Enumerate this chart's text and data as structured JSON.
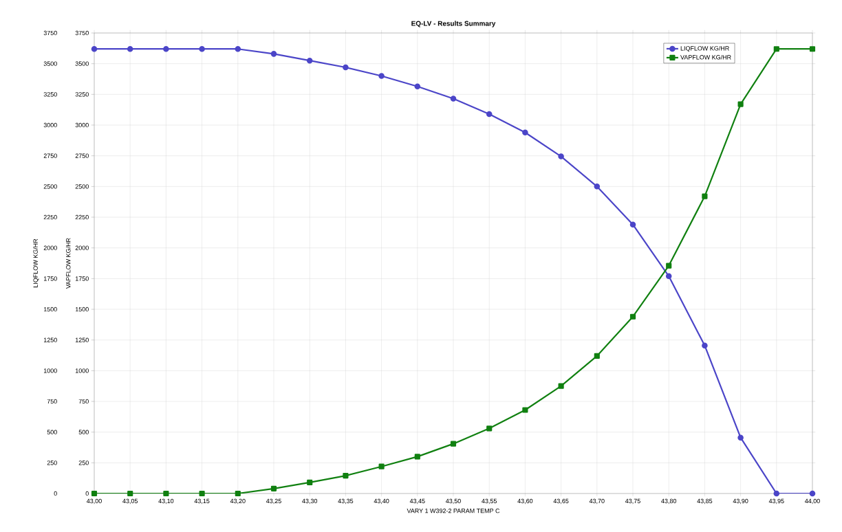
{
  "chart_data": {
    "type": "line",
    "title": "EQ-LV - Results Summary",
    "xlabel": "VARY 1 W392-2 PARAM TEMP C",
    "ylabel": "LIQFLOW KG/HR",
    "y2label": "VAPFLOW KG/HR",
    "x": [
      43.0,
      43.05,
      43.1,
      43.15,
      43.2,
      43.25,
      43.3,
      43.35,
      43.4,
      43.45,
      43.5,
      43.55,
      43.6,
      43.65,
      43.7,
      43.75,
      43.8,
      43.85,
      43.9,
      43.95,
      44.0
    ],
    "series": [
      {
        "name": "LIQFLOW KG/HR",
        "color": "#4b45c8",
        "marker": "circle",
        "values": [
          3620,
          3620,
          3620,
          3620,
          3620,
          3580,
          3525,
          3470,
          3400,
          3315,
          3215,
          3090,
          2940,
          2745,
          2500,
          2190,
          1770,
          1205,
          455,
          0,
          0
        ]
      },
      {
        "name": "VAPFLOW KG/HR",
        "color": "#108010",
        "marker": "square",
        "axis": "y2",
        "values": [
          0,
          0,
          0,
          0,
          0,
          40,
          90,
          145,
          220,
          300,
          405,
          530,
          680,
          875,
          1120,
          1440,
          1855,
          2420,
          3170,
          3620,
          3620
        ]
      }
    ],
    "xlim": [
      43.0,
      44.0
    ],
    "xticks": [
      {
        "value": 43.0,
        "label": "43,00"
      },
      {
        "value": 43.05,
        "label": "43,05"
      },
      {
        "value": 43.1,
        "label": "43,10"
      },
      {
        "value": 43.15,
        "label": "43,15"
      },
      {
        "value": 43.2,
        "label": "43,20"
      },
      {
        "value": 43.25,
        "label": "43,25"
      },
      {
        "value": 43.3,
        "label": "43,30"
      },
      {
        "value": 43.35,
        "label": "43,35"
      },
      {
        "value": 43.4,
        "label": "43,40"
      },
      {
        "value": 43.45,
        "label": "43,45"
      },
      {
        "value": 43.5,
        "label": "43,50"
      },
      {
        "value": 43.55,
        "label": "43,55"
      },
      {
        "value": 43.6,
        "label": "43,60"
      },
      {
        "value": 43.65,
        "label": "43,65"
      },
      {
        "value": 43.7,
        "label": "43,70"
      },
      {
        "value": 43.75,
        "label": "43,75"
      },
      {
        "value": 43.8,
        "label": "43,80"
      },
      {
        "value": 43.85,
        "label": "43,85"
      },
      {
        "value": 43.9,
        "label": "43,90"
      },
      {
        "value": 43.95,
        "label": "43,95"
      },
      {
        "value": 44.0,
        "label": "44,00"
      }
    ],
    "ylim": [
      0,
      3750
    ],
    "yticks": [
      0,
      250,
      500,
      750,
      1000,
      1250,
      1500,
      1750,
      2000,
      2250,
      2500,
      2750,
      3000,
      3250,
      3500,
      3750
    ],
    "y2lim": [
      0,
      3750
    ],
    "y2ticks": [
      0,
      250,
      500,
      750,
      1000,
      1250,
      1500,
      1750,
      2000,
      2250,
      2500,
      2750,
      3000,
      3250,
      3500,
      3750
    ],
    "grid": true,
    "legend": "top right",
    "line_style": "solid"
  }
}
